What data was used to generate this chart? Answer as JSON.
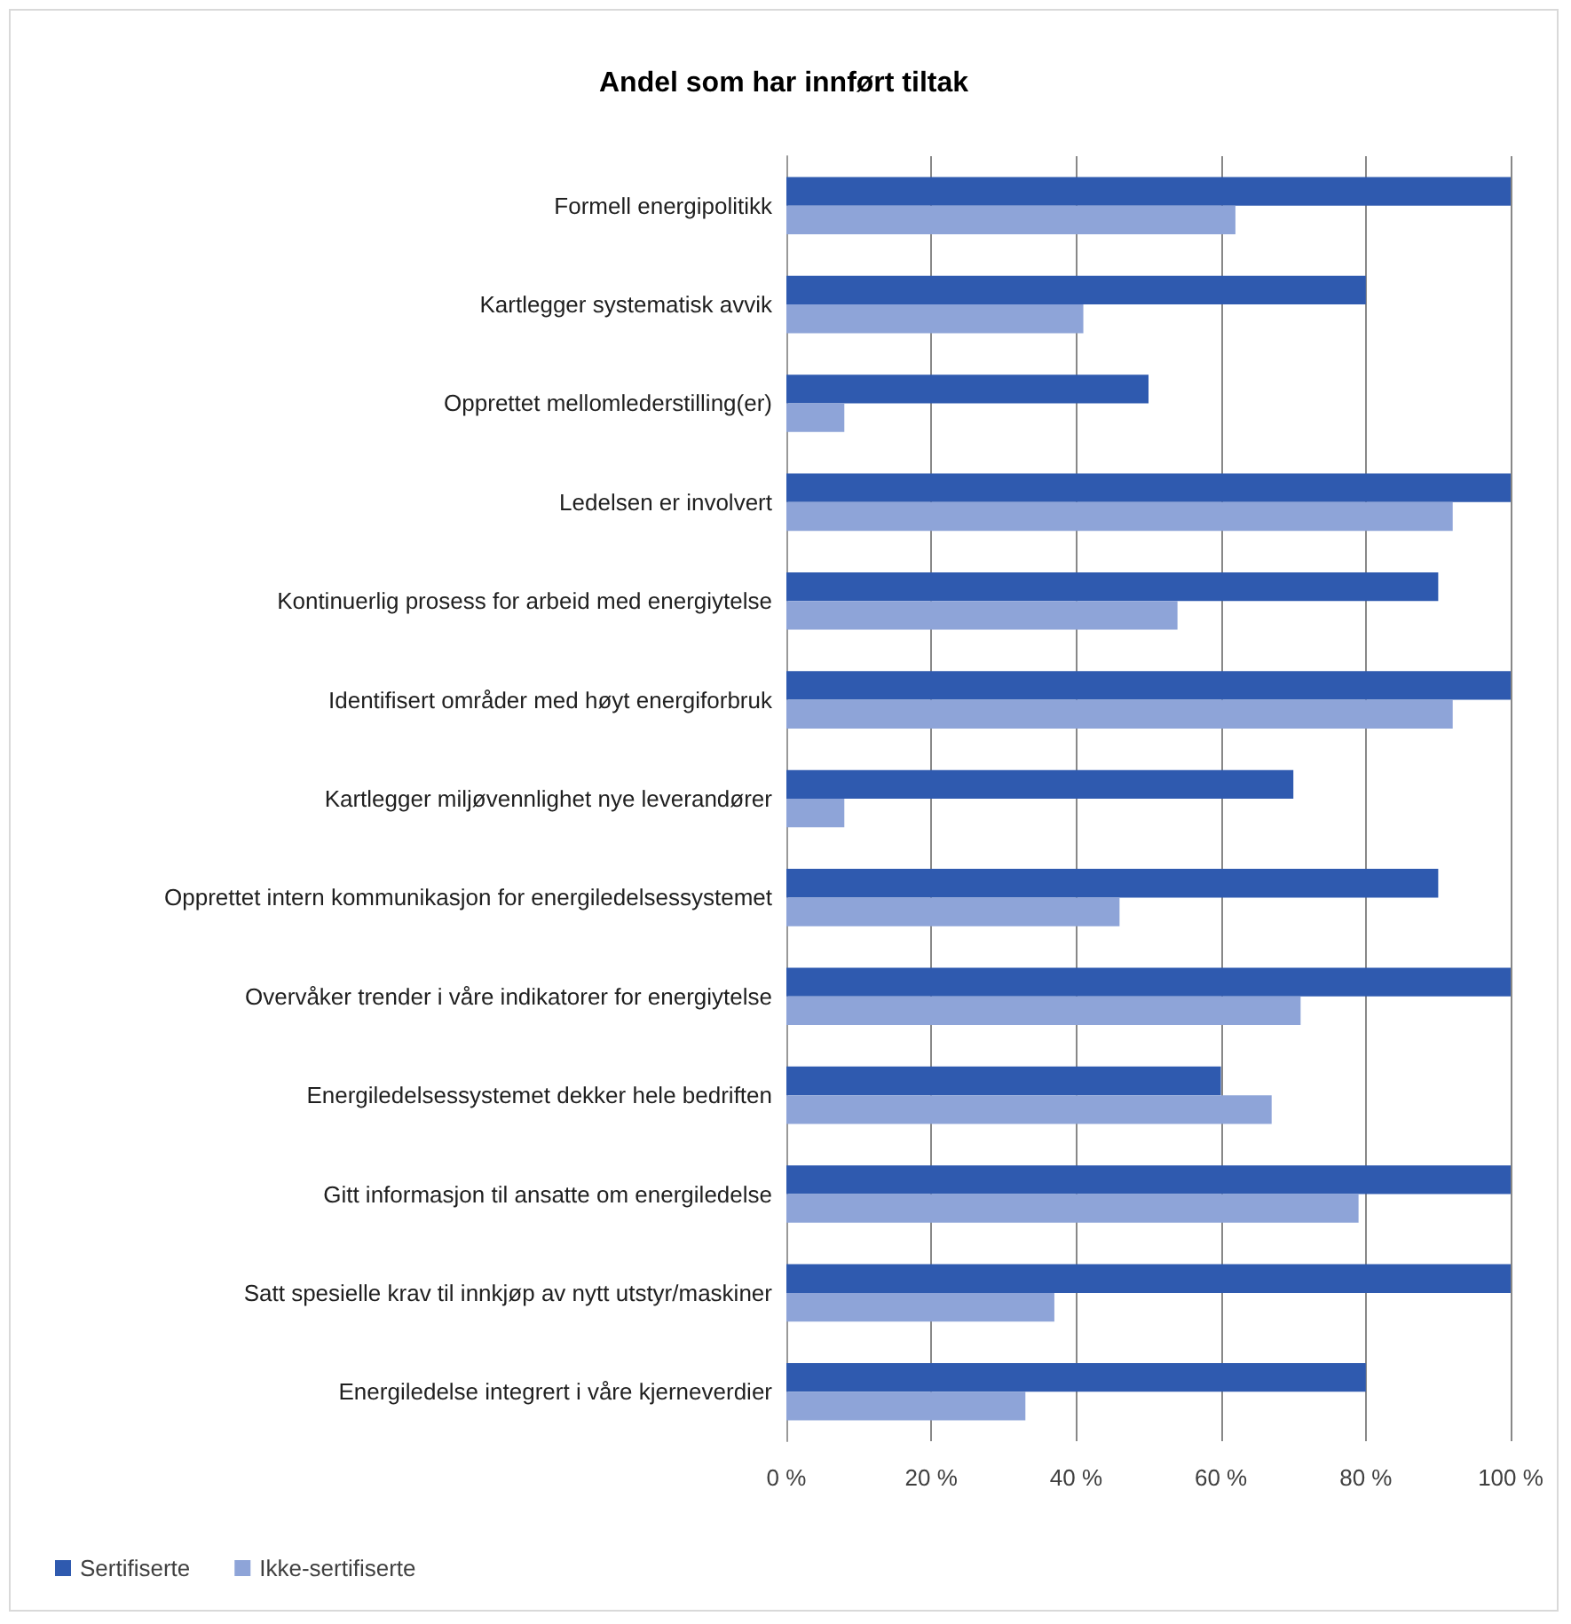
{
  "chart_data": {
    "type": "bar",
    "orientation": "horizontal",
    "title": "Andel som har innført tiltak",
    "categories": [
      "Formell energipolitikk",
      "Kartlegger systematisk avvik",
      "Opprettet mellomlederstilling(er)",
      "Ledelsen er involvert",
      "Kontinuerlig prosess for arbeid med energiytelse",
      "Identifisert områder med høyt energiforbruk",
      "Kartlegger miljøvennlighet nye leverandører",
      "Opprettet intern kommunikasjon for energiledelsessystemet",
      "Overvåker trender i våre indikatorer for energiytelse",
      "Energiledelsessystemet dekker hele bedriften",
      "Gitt informasjon til ansatte om energiledelse",
      "Satt spesielle krav til innkjøp av nytt utstyr/maskiner",
      "Energiledelse integrert i våre kjerneverdier"
    ],
    "series": [
      {
        "name": "Sertifiserte",
        "color": "#2f5aaf",
        "values": [
          100,
          80,
          50,
          100,
          90,
          100,
          70,
          90,
          100,
          60,
          100,
          100,
          80
        ]
      },
      {
        "name": "Ikke-sertifiserte",
        "color": "#8ea4d8",
        "values": [
          62,
          41,
          8,
          92,
          54,
          92,
          8,
          46,
          71,
          67,
          79,
          37,
          33
        ]
      }
    ],
    "xlim": [
      0,
      100
    ],
    "xticks": [
      {
        "value": 0,
        "label": "0 %"
      },
      {
        "value": 20,
        "label": "20 %"
      },
      {
        "value": 40,
        "label": "40 %"
      },
      {
        "value": 60,
        "label": "60 %"
      },
      {
        "value": 80,
        "label": "80 %"
      },
      {
        "value": 100,
        "label": "100 %"
      }
    ],
    "grid": "x",
    "legend": "bottom"
  }
}
